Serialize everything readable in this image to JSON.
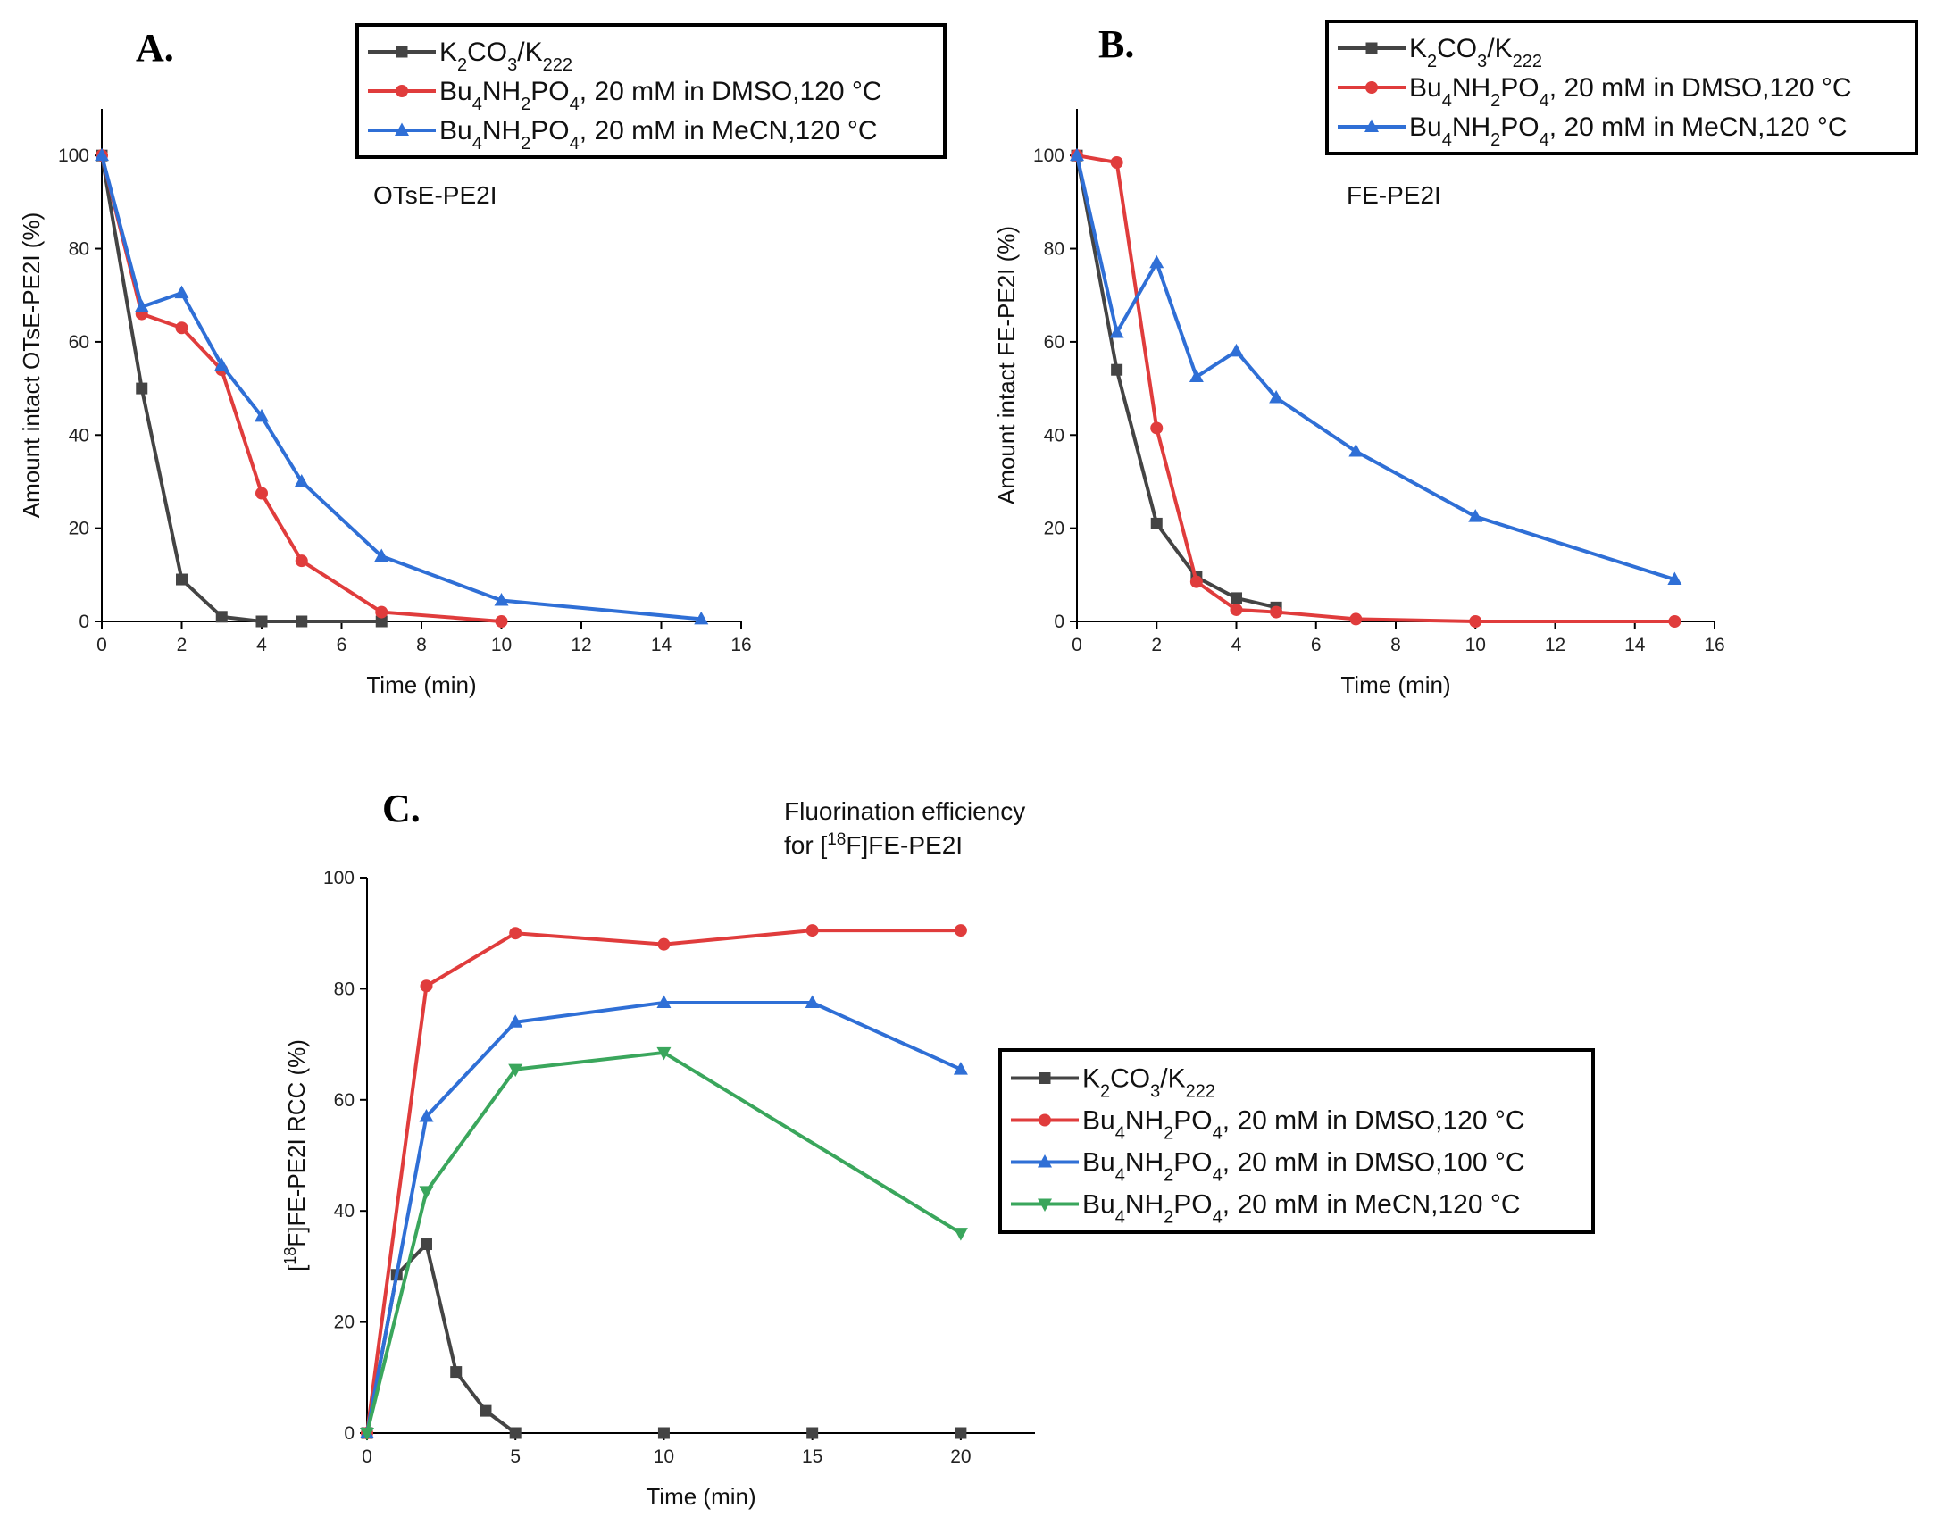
{
  "colors": {
    "k2co3": "#444444",
    "dmso120": "#e03c3c",
    "mecn120": "#2f6fd6",
    "dmso100": "#2f6fd6",
    "mecn120_green": "#3aa65c"
  },
  "chart_data": [
    {
      "panel": "A.",
      "type": "line",
      "annotation": "OTsE-PE2I",
      "xlabel": "Time (min)",
      "ylabel": "Amount intact OTsE-PE2I (%)",
      "xlim": [
        0,
        16
      ],
      "ylim": [
        0,
        110
      ],
      "xticks": [
        0,
        2,
        4,
        6,
        8,
        10,
        12,
        14,
        16
      ],
      "yticks": [
        0,
        20,
        40,
        60,
        80,
        100
      ],
      "legend_position": "top",
      "series": [
        {
          "name": "K2CO3/K222",
          "label": {
            "main": "K",
            "s1": "2",
            "m2": "CO",
            "s2": "3",
            "m3": "/K",
            "s3": "222"
          },
          "marker": "square",
          "color_key": "k2co3",
          "x": [
            0,
            1,
            2,
            3,
            4,
            5,
            7
          ],
          "y": [
            100,
            50,
            9,
            1,
            0,
            0,
            0
          ]
        },
        {
          "name": "Bu4NH2PO4, 20 mM in DMSO,120 °C",
          "label": {
            "main": "Bu",
            "s1": "4",
            "m2": "NH",
            "s2": "2",
            "m3": "PO",
            "s3": "4",
            "tail": ", 20 mM in DMSO,120 °C"
          },
          "marker": "circle",
          "color_key": "dmso120",
          "x": [
            0,
            1,
            2,
            3,
            4,
            5,
            7,
            10
          ],
          "y": [
            100,
            66,
            63,
            54,
            27.5,
            13,
            2,
            0
          ]
        },
        {
          "name": "Bu4NH2PO4, 20 mM in MeCN,120 °C",
          "label": {
            "main": "Bu",
            "s1": "4",
            "m2": "NH",
            "s2": "2",
            "m3": "PO",
            "s3": "4",
            "tail": ", 20 mM in MeCN,120 °C"
          },
          "marker": "triangle",
          "color_key": "mecn120",
          "x": [
            0,
            1,
            2,
            3,
            4,
            5,
            7,
            10,
            15
          ],
          "y": [
            100,
            67.5,
            70.5,
            55,
            44,
            30,
            14,
            4.5,
            0.5
          ]
        }
      ]
    },
    {
      "panel": "B.",
      "type": "line",
      "annotation": "FE-PE2I",
      "xlabel": "Time (min)",
      "ylabel": "Amount intact FE-PE2I (%)",
      "xlim": [
        0,
        16
      ],
      "ylim": [
        0,
        110
      ],
      "xticks": [
        0,
        2,
        4,
        6,
        8,
        10,
        12,
        14,
        16
      ],
      "yticks": [
        0,
        20,
        40,
        60,
        80,
        100
      ],
      "legend_position": "top",
      "series": [
        {
          "name": "K2CO3/K222",
          "label": {
            "main": "K",
            "s1": "2",
            "m2": "CO",
            "s2": "3",
            "m3": "/K",
            "s3": "222"
          },
          "marker": "square",
          "color_key": "k2co3",
          "x": [
            0,
            1,
            2,
            3,
            4,
            5
          ],
          "y": [
            100,
            54,
            21,
            9.5,
            5,
            3
          ]
        },
        {
          "name": "Bu4NH2PO4, 20 mM in DMSO,120 °C",
          "label": {
            "main": "Bu",
            "s1": "4",
            "m2": "NH",
            "s2": "2",
            "m3": "PO",
            "s3": "4",
            "tail": ", 20 mM in DMSO,120 °C"
          },
          "marker": "circle",
          "color_key": "dmso120",
          "x": [
            0,
            1,
            2,
            3,
            4,
            5,
            7,
            10,
            15
          ],
          "y": [
            100,
            98.5,
            41.5,
            8.5,
            2.5,
            2,
            0.5,
            0,
            0
          ]
        },
        {
          "name": "Bu4NH2PO4, 20 mM in MeCN,120 °C",
          "label": {
            "main": "Bu",
            "s1": "4",
            "m2": "NH",
            "s2": "2",
            "m3": "PO",
            "s3": "4",
            "tail": ", 20 mM in MeCN,120 °C"
          },
          "marker": "triangle",
          "color_key": "mecn120",
          "x": [
            0,
            1,
            2,
            3,
            4,
            5,
            7,
            10,
            15
          ],
          "y": [
            100,
            62,
            77,
            52.5,
            58,
            48,
            36.5,
            22.5,
            9
          ]
        }
      ]
    },
    {
      "panel": "C.",
      "type": "line",
      "title_line1": "Fluorination efficiency",
      "title_line2": {
        "pre": "for [",
        "sup": "18",
        "post": "F]FE-PE2I"
      },
      "xlabel": "Time (min)",
      "ylabel": {
        "pre": "[",
        "sup": "18",
        "post": "F]FE-PE2I RCC (%)"
      },
      "xlim": [
        0,
        22.5
      ],
      "ylim": [
        0,
        100
      ],
      "xticks": [
        0,
        5,
        10,
        15,
        20
      ],
      "yticks": [
        0,
        20,
        40,
        60,
        80,
        100
      ],
      "legend_position": "right",
      "series": [
        {
          "name": "K2CO3/K222",
          "label": {
            "main": "K",
            "s1": "2",
            "m2": "CO",
            "s2": "3",
            "m3": "/K",
            "s3": "222"
          },
          "marker": "square",
          "color_key": "k2co3",
          "x": [
            0,
            1,
            2,
            3,
            4,
            5,
            10,
            15,
            20
          ],
          "y": [
            0,
            28.5,
            34,
            11,
            4,
            0,
            0,
            0,
            0
          ],
          "line_until_index": 5
        },
        {
          "name": "Bu4NH2PO4, 20 mM in DMSO,120 °C",
          "label": {
            "main": "Bu",
            "s1": "4",
            "m2": "NH",
            "s2": "2",
            "m3": "PO",
            "s3": "4",
            "tail": ", 20 mM in DMSO,120 °C"
          },
          "marker": "circle",
          "color_key": "dmso120",
          "x": [
            0,
            2,
            5,
            10,
            15,
            20
          ],
          "y": [
            0,
            80.5,
            90,
            88,
            90.5,
            90.5
          ]
        },
        {
          "name": "Bu4NH2PO4, 20 mM in DMSO,100 °C",
          "label": {
            "main": "Bu",
            "s1": "4",
            "m2": "NH",
            "s2": "2",
            "m3": "PO",
            "s3": "4",
            "tail": ", 20 mM in DMSO,100 °C"
          },
          "marker": "triangle",
          "color_key": "dmso100",
          "x": [
            0,
            2,
            5,
            10,
            15,
            20
          ],
          "y": [
            0,
            57,
            74,
            77.5,
            77.5,
            65.5
          ]
        },
        {
          "name": "Bu4NH2PO4, 20 mM in MeCN,120 °C",
          "label": {
            "main": " Bu",
            "s1": "4",
            "m2": "NH",
            "s2": "2",
            "m3": "PO",
            "s3": "4",
            "tail": ", 20 mM in MeCN,120 °C"
          },
          "marker": "triangle-down",
          "color_key": "mecn120_green",
          "x": [
            0,
            2,
            5,
            10,
            20
          ],
          "y": [
            0,
            43.5,
            65.5,
            68.5,
            36
          ]
        }
      ]
    }
  ]
}
